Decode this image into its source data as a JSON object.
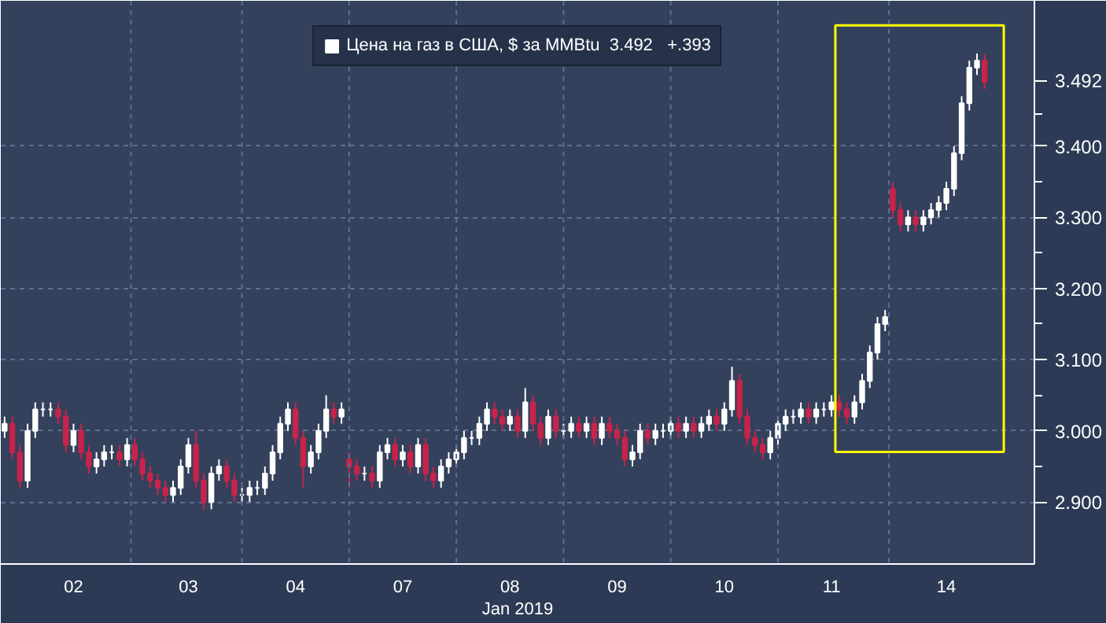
{
  "chart_data": {
    "type": "candlestick",
    "xlabel": "Jan 2019",
    "categories": [
      null,
      null,
      null,
      null,
      null,
      null,
      null,
      null,
      null,
      "02",
      null,
      null,
      null,
      null,
      null,
      null,
      null,
      null,
      null,
      null,
      null,
      null,
      null,
      null,
      "03",
      null,
      null,
      null,
      null,
      null,
      null,
      null,
      null,
      null,
      null,
      null,
      null,
      null,
      "04",
      null,
      null,
      null,
      null,
      null,
      null,
      null,
      null,
      null,
      null,
      null,
      null,
      null,
      "07",
      null,
      null,
      null,
      null,
      null,
      null,
      null,
      null,
      null,
      null,
      null,
      null,
      null,
      "08",
      null,
      null,
      null,
      null,
      null,
      null,
      null,
      null,
      null,
      null,
      null,
      null,
      null,
      "09",
      null,
      null,
      null,
      null,
      null,
      null,
      null,
      null,
      null,
      null,
      null,
      null,
      null,
      "10",
      null,
      null,
      null,
      null,
      null,
      null,
      null,
      null,
      null,
      null,
      null,
      null,
      null,
      "11",
      null,
      null,
      null,
      null,
      null,
      null,
      null,
      null,
      null,
      null,
      null,
      null,
      null,
      null,
      "14",
      null,
      null,
      null,
      null,
      null
    ],
    "series": [
      {
        "name": "Цена на газ в США, $ за MMBtu  3.492   +.393",
        "color": "#ffffff",
        "colors": [
          "#ffffff",
          "#c8234a",
          "#c8234a",
          "#ffffff",
          "#ffffff",
          "#ffffff",
          "#ffffff",
          "#c8234a",
          "#c8234a",
          "#ffffff",
          "#c8234a",
          "#c8234a",
          "#ffffff",
          "#ffffff",
          "#ffffff",
          "#c8234a",
          "#ffffff",
          "#c8234a",
          "#c8234a",
          "#c8234a",
          "#c8234a",
          "#c8234a",
          "#ffffff",
          "#ffffff",
          "#ffffff",
          "#c8234a",
          "#c8234a",
          "#ffffff",
          "#ffffff",
          "#c8234a",
          "#c8234a",
          "#ffffff",
          "#ffffff",
          "#ffffff",
          "#ffffff",
          "#ffffff",
          "#ffffff",
          "#ffffff",
          "#c8234a",
          "#c8234a",
          "#ffffff",
          "#ffffff",
          "#ffffff",
          "#c8234a",
          "#ffffff",
          "#c8234a",
          "#c8234a",
          "#ffffff",
          "#c8234a",
          "#ffffff",
          "#ffffff",
          "#c8234a",
          "#ffffff",
          "#c8234a",
          "#ffffff",
          "#c8234a",
          "#c8234a",
          "#ffffff",
          "#ffffff",
          "#ffffff",
          "#ffffff",
          "#ffffff",
          "#ffffff",
          "#ffffff",
          "#c8234a",
          "#c8234a",
          "#ffffff",
          "#c8234a",
          "#ffffff",
          "#c8234a",
          "#c8234a",
          "#ffffff",
          "#c8234a",
          "#ffffff",
          "#ffffff",
          "#c8234a",
          "#ffffff",
          "#c8234a",
          "#ffffff",
          "#c8234a",
          "#c8234a",
          "#c8234a",
          "#ffffff",
          "#ffffff",
          "#c8234a",
          "#ffffff",
          "#ffffff",
          "#ffffff",
          "#c8234a",
          "#ffffff",
          "#c8234a",
          "#ffffff",
          "#ffffff",
          "#c8234a",
          "#ffffff",
          "#ffffff",
          "#c8234a",
          "#c8234a",
          "#c8234a",
          "#c8234a",
          "#ffffff",
          "#ffffff",
          "#ffffff",
          "#ffffff",
          "#ffffff",
          "#c8234a",
          "#ffffff",
          "#ffffff",
          "#ffffff",
          "#c8234a",
          "#c8234a",
          "#ffffff",
          "#ffffff",
          "#ffffff",
          "#ffffff",
          "#ffffff",
          "#c8234a",
          "#c8234a",
          "#ffffff",
          "#c8234a",
          "#ffffff",
          "#ffffff",
          "#ffffff",
          "#ffffff",
          "#ffffff",
          "#ffffff",
          "#ffffff",
          "#ffffff",
          "#c8234a"
        ],
        "ohlc": [
          [
            3.0,
            3.02,
            2.99,
            3.01
          ],
          [
            3.01,
            3.02,
            2.96,
            2.97
          ],
          [
            2.97,
            2.98,
            2.92,
            2.93
          ],
          [
            2.93,
            3.01,
            2.92,
            3.0
          ],
          [
            3.0,
            3.04,
            2.99,
            3.03
          ],
          [
            3.03,
            3.04,
            3.02,
            3.03
          ],
          [
            3.03,
            3.04,
            3.02,
            3.03
          ],
          [
            3.03,
            3.04,
            3.01,
            3.02
          ],
          [
            3.02,
            3.03,
            2.97,
            2.98
          ],
          [
            2.98,
            3.01,
            2.97,
            3.0
          ],
          [
            3.0,
            3.01,
            2.96,
            2.97
          ],
          [
            2.97,
            2.98,
            2.94,
            2.95
          ],
          [
            2.95,
            2.97,
            2.94,
            2.96
          ],
          [
            2.96,
            2.98,
            2.95,
            2.97
          ],
          [
            2.97,
            2.98,
            2.96,
            2.97
          ],
          [
            2.97,
            2.98,
            2.95,
            2.96
          ],
          [
            2.96,
            2.99,
            2.95,
            2.98
          ],
          [
            2.98,
            2.99,
            2.95,
            2.96
          ],
          [
            2.96,
            2.97,
            2.93,
            2.94
          ],
          [
            2.94,
            2.95,
            2.92,
            2.93
          ],
          [
            2.93,
            2.94,
            2.91,
            2.92
          ],
          [
            2.92,
            2.93,
            2.9,
            2.91
          ],
          [
            2.91,
            2.93,
            2.9,
            2.92
          ],
          [
            2.92,
            2.96,
            2.91,
            2.95
          ],
          [
            2.95,
            2.99,
            2.94,
            2.98
          ],
          [
            2.98,
            3.0,
            2.92,
            2.93
          ],
          [
            2.93,
            2.94,
            2.89,
            2.9
          ],
          [
            2.9,
            2.95,
            2.89,
            2.94
          ],
          [
            2.94,
            2.96,
            2.93,
            2.95
          ],
          [
            2.95,
            2.96,
            2.92,
            2.93
          ],
          [
            2.93,
            2.94,
            2.9,
            2.91
          ],
          [
            2.91,
            2.92,
            2.9,
            2.91
          ],
          [
            2.91,
            2.93,
            2.9,
            2.92
          ],
          [
            2.92,
            2.93,
            2.91,
            2.92
          ],
          [
            2.92,
            2.95,
            2.91,
            2.94
          ],
          [
            2.94,
            2.98,
            2.93,
            2.97
          ],
          [
            2.97,
            3.02,
            2.96,
            3.01
          ],
          [
            3.01,
            3.04,
            3.0,
            3.03
          ],
          [
            3.03,
            3.04,
            2.98,
            2.99
          ],
          [
            2.99,
            3.0,
            2.92,
            2.95
          ],
          [
            2.95,
            2.98,
            2.94,
            2.97
          ],
          [
            2.97,
            3.01,
            2.96,
            3.0
          ],
          [
            3.0,
            3.05,
            2.99,
            3.03
          ],
          [
            3.03,
            3.04,
            3.01,
            3.02
          ],
          [
            3.02,
            3.04,
            3.01,
            3.03
          ],
          [
            2.96,
            2.97,
            2.92,
            2.95
          ],
          [
            2.95,
            2.96,
            2.93,
            2.94
          ],
          [
            2.94,
            2.95,
            2.93,
            2.94
          ],
          [
            2.94,
            2.95,
            2.92,
            2.93
          ],
          [
            2.93,
            2.98,
            2.92,
            2.97
          ],
          [
            2.97,
            2.99,
            2.96,
            2.98
          ],
          [
            2.98,
            2.99,
            2.95,
            2.96
          ],
          [
            2.96,
            2.98,
            2.95,
            2.97
          ],
          [
            2.97,
            2.98,
            2.94,
            2.95
          ],
          [
            2.95,
            2.99,
            2.94,
            2.98
          ],
          [
            2.98,
            2.99,
            2.93,
            2.94
          ],
          [
            2.94,
            2.95,
            2.92,
            2.93
          ],
          [
            2.93,
            2.96,
            2.92,
            2.95
          ],
          [
            2.95,
            2.97,
            2.94,
            2.96
          ],
          [
            2.96,
            2.98,
            2.95,
            2.97
          ],
          [
            2.97,
            3.0,
            2.96,
            2.99
          ],
          [
            2.99,
            3.0,
            2.98,
            2.99
          ],
          [
            2.99,
            3.02,
            2.98,
            3.01
          ],
          [
            3.01,
            3.04,
            3.0,
            3.03
          ],
          [
            3.03,
            3.04,
            3.01,
            3.02
          ],
          [
            3.02,
            3.03,
            3.0,
            3.01
          ],
          [
            3.01,
            3.03,
            3.0,
            3.02
          ],
          [
            3.02,
            3.03,
            2.99,
            3.0
          ],
          [
            3.0,
            3.06,
            2.99,
            3.04
          ],
          [
            3.04,
            3.05,
            3.0,
            3.01
          ],
          [
            3.01,
            3.02,
            2.98,
            2.99
          ],
          [
            2.99,
            3.03,
            2.98,
            3.02
          ],
          [
            3.02,
            3.03,
            2.99,
            3.0
          ],
          [
            3.0,
            3.01,
            2.99,
            3.0
          ],
          [
            3.0,
            3.02,
            2.99,
            3.01
          ],
          [
            3.01,
            3.02,
            2.99,
            3.0
          ],
          [
            3.0,
            3.02,
            2.99,
            3.01
          ],
          [
            3.01,
            3.02,
            2.98,
            2.99
          ],
          [
            2.99,
            3.02,
            2.98,
            3.01
          ],
          [
            3.01,
            3.02,
            2.99,
            3.0
          ],
          [
            3.0,
            3.01,
            2.98,
            2.99
          ],
          [
            2.99,
            3.0,
            2.95,
            2.96
          ],
          [
            2.96,
            2.98,
            2.95,
            2.97
          ],
          [
            2.97,
            3.01,
            2.96,
            3.0
          ],
          [
            3.0,
            3.01,
            2.98,
            2.99
          ],
          [
            2.99,
            3.01,
            2.98,
            3.0
          ],
          [
            3.0,
            3.01,
            2.99,
            3.0
          ],
          [
            3.0,
            3.02,
            2.99,
            3.01
          ],
          [
            3.01,
            3.02,
            2.99,
            3.0
          ],
          [
            3.0,
            3.02,
            2.99,
            3.01
          ],
          [
            3.01,
            3.02,
            2.99,
            3.0
          ],
          [
            3.0,
            3.02,
            2.99,
            3.01
          ],
          [
            3.01,
            3.03,
            3.0,
            3.02
          ],
          [
            3.02,
            3.03,
            3.0,
            3.01
          ],
          [
            3.01,
            3.04,
            3.0,
            3.03
          ],
          [
            3.03,
            3.09,
            3.02,
            3.07
          ],
          [
            3.07,
            3.08,
            3.01,
            3.02
          ],
          [
            3.02,
            3.03,
            2.98,
            2.99
          ],
          [
            2.99,
            3.0,
            2.97,
            2.98
          ],
          [
            2.98,
            2.99,
            2.96,
            2.97
          ],
          [
            2.97,
            3.0,
            2.96,
            2.99
          ],
          [
            2.99,
            3.02,
            2.98,
            3.01
          ],
          [
            3.01,
            3.03,
            3.0,
            3.02
          ],
          [
            3.02,
            3.03,
            3.01,
            3.02
          ],
          [
            3.02,
            3.04,
            3.01,
            3.03
          ],
          [
            3.03,
            3.04,
            3.01,
            3.02
          ],
          [
            3.02,
            3.04,
            3.01,
            3.03
          ],
          [
            3.03,
            3.04,
            3.02,
            3.03
          ],
          [
            3.03,
            3.05,
            3.02,
            3.04
          ],
          [
            3.04,
            3.05,
            3.02,
            3.03
          ],
          [
            3.03,
            3.04,
            3.01,
            3.02
          ],
          [
            3.02,
            3.05,
            3.01,
            3.04
          ],
          [
            3.04,
            3.08,
            3.03,
            3.07
          ],
          [
            3.07,
            3.12,
            3.06,
            3.11
          ],
          [
            3.11,
            3.16,
            3.1,
            3.15
          ],
          [
            3.15,
            3.17,
            3.14,
            3.16
          ],
          [
            3.34,
            3.35,
            3.3,
            3.31
          ],
          [
            3.31,
            3.32,
            3.28,
            3.29
          ],
          [
            3.29,
            3.31,
            3.28,
            3.3
          ],
          [
            3.3,
            3.31,
            3.28,
            3.29
          ],
          [
            3.29,
            3.31,
            3.28,
            3.3
          ],
          [
            3.3,
            3.32,
            3.29,
            3.31
          ],
          [
            3.31,
            3.33,
            3.3,
            3.32
          ],
          [
            3.32,
            3.35,
            3.31,
            3.34
          ],
          [
            3.34,
            3.4,
            3.33,
            3.39
          ],
          [
            3.39,
            3.47,
            3.38,
            3.46
          ],
          [
            3.46,
            3.52,
            3.45,
            3.51
          ],
          [
            3.51,
            3.53,
            3.5,
            3.52
          ],
          [
            3.52,
            3.53,
            3.48,
            3.49
          ]
        ]
      }
    ],
    "ylim": [
      2.813,
      3.604
    ],
    "yticks": [
      {
        "value": 2.9,
        "label": "2.900"
      },
      {
        "value": 3.0,
        "label": "3.000"
      },
      {
        "value": 3.1,
        "label": "3.100"
      },
      {
        "value": 3.2,
        "label": "3.200"
      },
      {
        "value": 3.3,
        "label": "3.300"
      },
      {
        "value": 3.4,
        "label": "3.400"
      },
      3.492
    ],
    "grid": true,
    "legend": "top"
  }
}
